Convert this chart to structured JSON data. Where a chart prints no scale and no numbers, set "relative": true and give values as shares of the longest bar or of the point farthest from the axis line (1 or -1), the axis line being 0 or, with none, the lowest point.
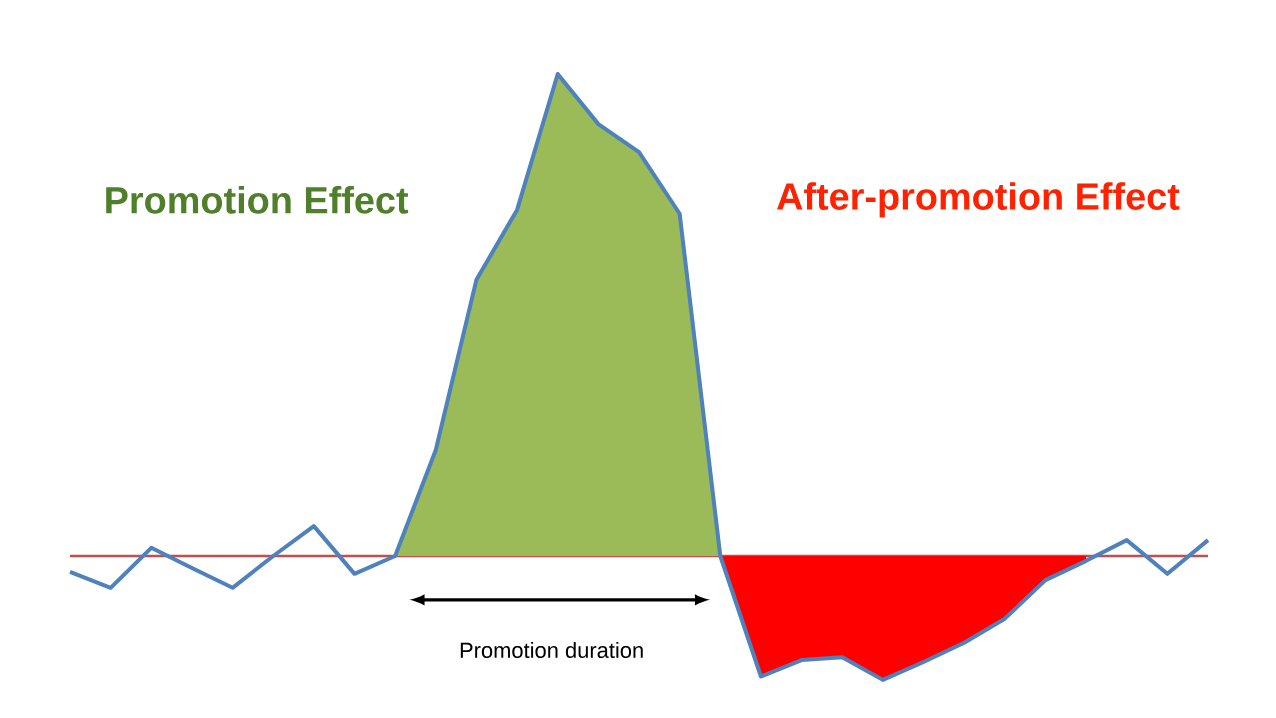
{
  "chart_data": {
    "type": "line",
    "relative": true,
    "categories": [
      null,
      null,
      null,
      null,
      null,
      null,
      null,
      null,
      null,
      null,
      null,
      null,
      null,
      null,
      null,
      null,
      null,
      null,
      null,
      null,
      null,
      null,
      null,
      null,
      null,
      null,
      null,
      null,
      null
    ],
    "series": [
      {
        "type": "area",
        "color": "#9bbb59",
        "values": [
          null,
          null,
          null,
          null,
          null,
          null,
          null,
          null,
          0,
          0.22,
          0.573,
          0.718,
          1,
          0.896,
          0.838,
          0.71,
          0,
          null,
          null,
          null,
          null,
          null,
          null,
          null,
          null,
          null,
          null,
          null,
          null
        ]
      },
      {
        "type": "area",
        "color": "#ff0000",
        "values": [
          null,
          null,
          null,
          null,
          null,
          null,
          null,
          null,
          null,
          null,
          null,
          null,
          null,
          null,
          null,
          null,
          0,
          -0.25,
          -0.216,
          -0.21,
          -0.257,
          -0.22,
          -0.18,
          -0.13,
          -0.05,
          -0.01,
          null,
          null,
          null
        ]
      },
      {
        "color": "#4f81bd",
        "values": [
          -0.033,
          -0.066,
          0.017,
          -0.025,
          -0.066,
          0,
          0.062,
          -0.037,
          0,
          0.22,
          0.573,
          0.718,
          1,
          0.896,
          0.838,
          0.71,
          0,
          -0.25,
          -0.216,
          -0.21,
          -0.257,
          -0.22,
          -0.18,
          -0.13,
          -0.05,
          -0.01,
          0.033,
          -0.037,
          0.033
        ]
      }
    ],
    "ref_lines": [
      {
        "axis": "y",
        "value": 0,
        "color": "#c0504d"
      }
    ],
    "annotations": [
      "Promotion Effect",
      "After-promotion Effect",
      "Promotion duration"
    ]
  }
}
